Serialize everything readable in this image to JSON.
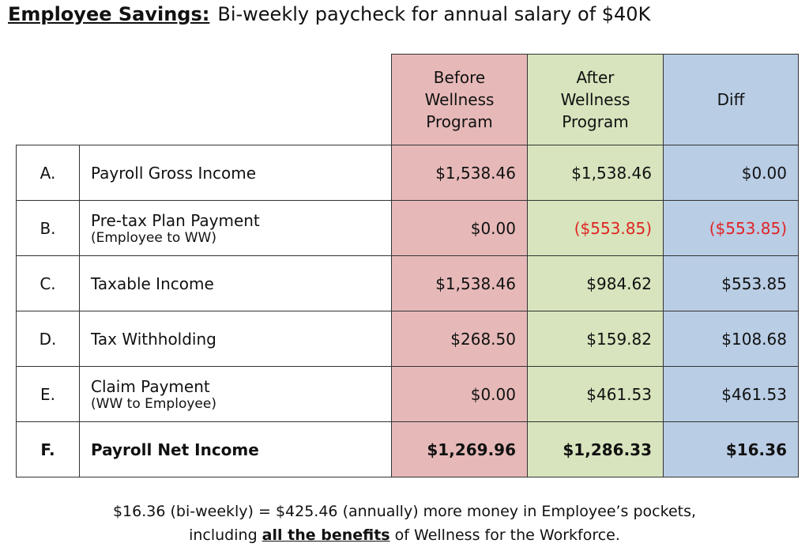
{
  "title": {
    "label": "Employee Savings:",
    "text": "Bi-weekly paycheck for annual salary of $40K"
  },
  "table": {
    "headers": [
      "Before Wellness Program",
      "After Wellness Program",
      "Diff"
    ],
    "rows": [
      {
        "letter": "A.",
        "label": "Payroll Gross Income",
        "values": [
          "$1,538.46",
          "$1,538.46",
          "$0.00"
        ]
      },
      {
        "letter": "B.",
        "label": "Pre-tax Plan Payment",
        "note": "(Employee to WW)",
        "values": [
          "$0.00",
          "($553.85)",
          "($553.85)"
        ]
      },
      {
        "letter": "C.",
        "label": "Taxable Income",
        "values": [
          "$1,538.46",
          "$984.62",
          "$553.85"
        ]
      },
      {
        "letter": "D.",
        "label": "Tax Withholding",
        "values": [
          "$268.50",
          "$159.82",
          "$108.68"
        ]
      },
      {
        "letter": "E.",
        "label": "Claim Payment",
        "note": "(WW to Employee)",
        "values": [
          "$0.00",
          "$461.53",
          "$461.53"
        ]
      },
      {
        "letter": "F.",
        "label": "Payroll Net Income",
        "values": [
          "$1,269.96",
          "$1,286.33",
          "$16.36"
        ]
      }
    ]
  },
  "footer": {
    "line1": "$16.36 (bi-weekly) = $425.46 (annually) more money in Employee’s pockets,",
    "line2_start": "including",
    "line2_emphasis": "all the benefits",
    "line2_end": "of Wellness for the Workforce."
  }
}
